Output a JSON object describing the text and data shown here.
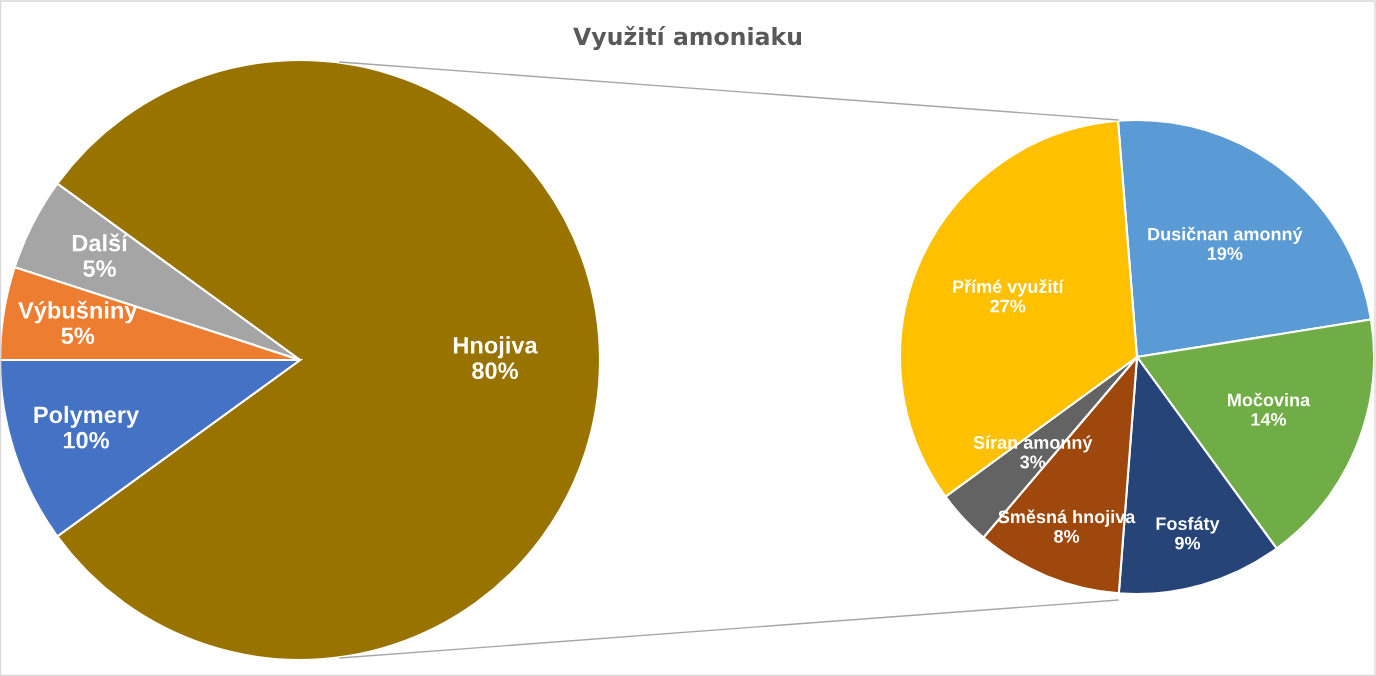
{
  "chart_data": [
    {
      "type": "pie",
      "title": "Využití amoniaku",
      "categories": [
        "Hnojiva",
        "Další",
        "Výbušniny",
        "Polymery"
      ],
      "values": [
        80,
        5,
        5,
        10
      ],
      "value_labels": [
        "80%",
        "5%",
        "5%",
        "10%"
      ],
      "colors": [
        "#997300",
        "#a5a5a5",
        "#ed7d31",
        "#4472c4"
      ]
    },
    {
      "type": "pie",
      "categories": [
        "Dusičnan amonný",
        "Močovina",
        "Fosfáty",
        "Směsná hnojiva",
        "Síran amonný",
        "Přímé využití"
      ],
      "values": [
        19,
        14,
        9,
        8,
        3,
        27
      ],
      "value_labels": [
        "19%",
        "14%",
        "9%",
        "8%",
        "3%",
        "27%"
      ],
      "colors": [
        "#5b9bd5",
        "#70ad47",
        "#264478",
        "#9e480e",
        "#636363",
        "#ffc000"
      ]
    }
  ]
}
